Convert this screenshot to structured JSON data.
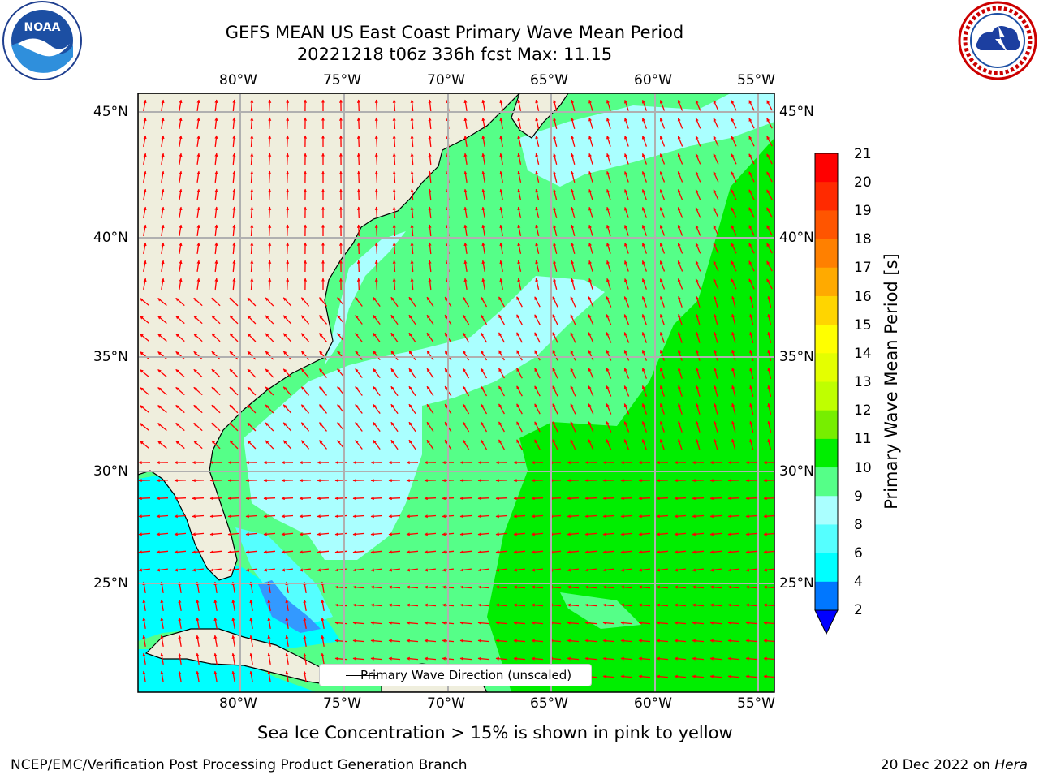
{
  "header": {
    "title_line1": "GEFS MEAN US East Coast Primary Wave Mean Period",
    "title_line2": "20221218 t06z 336h fcst   Max: 11.15"
  },
  "map": {
    "longitude_labels": [
      "80°W",
      "75°W",
      "70°W",
      "65°W",
      "60°W",
      "55°W"
    ],
    "latitude_labels": [
      "45°N",
      "40°N",
      "35°N",
      "30°N",
      "25°N"
    ],
    "lon_range": [
      -85,
      -54.3
    ],
    "lat_range": [
      20.5,
      45.9
    ],
    "grid": true,
    "background_sea_color": "#00ff00",
    "land_color": "#efeedd",
    "arrow_color": "#ff0000",
    "legend_text": "Primary Wave Direction (unscaled)"
  },
  "colorbar": {
    "label": "Primary Wave Mean Period [s]",
    "tick_labels": [
      "21",
      "20",
      "19",
      "18",
      "17",
      "16",
      "15",
      "14",
      "13",
      "12",
      "11",
      "10",
      "9",
      "8",
      "6",
      "4",
      "2"
    ],
    "colors": [
      "#ff0000",
      "#ff2a00",
      "#ff5500",
      "#ff8000",
      "#ffaa00",
      "#ffd500",
      "#ffff00",
      "#e4ff00",
      "#bfff00",
      "#77ee00",
      "#00ee00",
      "#55ff88",
      "#aaffff",
      "#55ffff",
      "#00ffff",
      "#0077ff",
      "#0000ff"
    ],
    "extend": "min"
  },
  "notes": {
    "sea_ice": "Sea Ice Concentration > 15% is shown in pink to yellow"
  },
  "footer": {
    "left": "NCEP/EMC/Verification Post Processing Product Generation Branch",
    "right_date": "20 Dec 2022 on ",
    "right_machine": "Hera"
  }
}
